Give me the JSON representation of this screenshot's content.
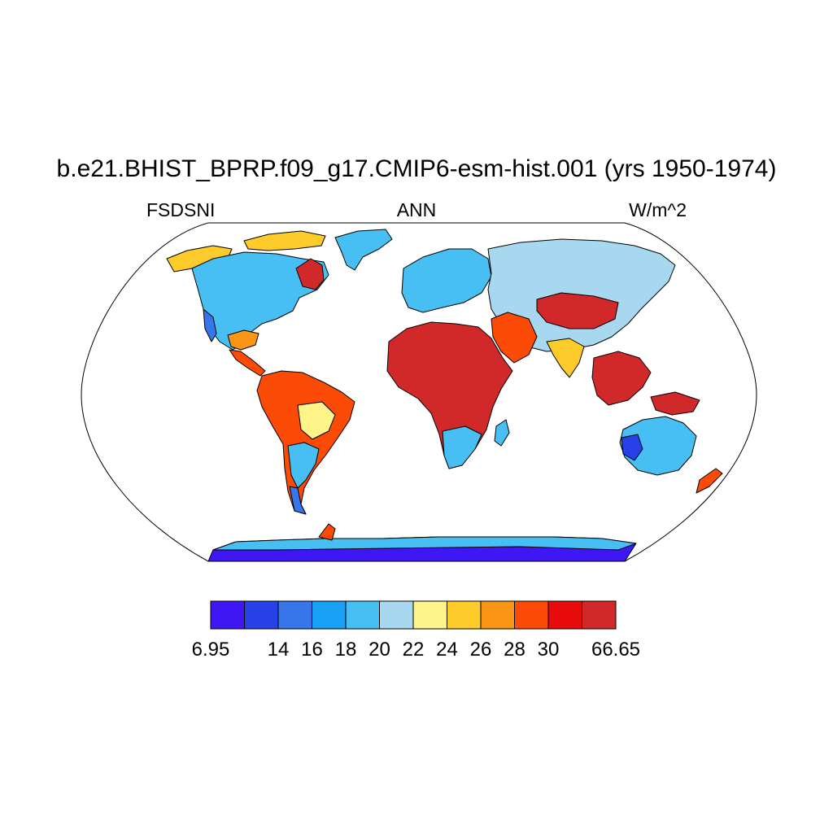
{
  "title": "b.e21.BHIST_BPRP.f09_g17.CMIP6-esm-hist.001 (yrs 1950-1974)",
  "subtitle": {
    "left": "FSDSNI",
    "center": "ANN",
    "right": "W/m^2"
  },
  "colorbar": {
    "colors": [
      "#3f17f5",
      "#2741e8",
      "#3775eb",
      "#18a0f5",
      "#48bff2",
      "#a8d8f0",
      "#fff48a",
      "#fdcb2a",
      "#fb9515",
      "#fb4b06",
      "#e70b0b",
      "#d1282a"
    ],
    "labels": [
      {
        "text": "6.95",
        "boundary": 0
      },
      {
        "text": "14",
        "boundary": 2
      },
      {
        "text": "16",
        "boundary": 3
      },
      {
        "text": "18",
        "boundary": 4
      },
      {
        "text": "20",
        "boundary": 5
      },
      {
        "text": "22",
        "boundary": 6
      },
      {
        "text": "24",
        "boundary": 7
      },
      {
        "text": "26",
        "boundary": 8
      },
      {
        "text": "28",
        "boundary": 9
      },
      {
        "text": "30",
        "boundary": 10
      },
      {
        "text": "66.65",
        "boundary": 12
      }
    ]
  },
  "map": {
    "projection": "robinson",
    "ocean_color": "#ffffff",
    "outline_color": "#000000"
  }
}
